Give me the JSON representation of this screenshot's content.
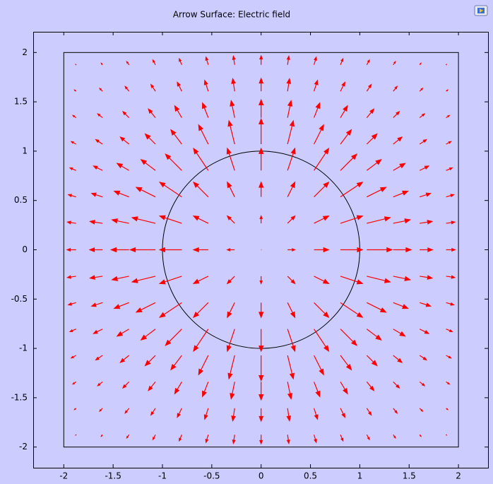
{
  "chart_data": {
    "type": "quiver",
    "title": "Arrow Surface: Electric field",
    "xlim": [
      -2.31,
      2.3
    ],
    "ylim": [
      -2.21,
      2.21
    ],
    "xticks": [
      -2,
      -1.5,
      -1,
      -0.5,
      0,
      0.5,
      1,
      1.5,
      2
    ],
    "yticks": [
      -2,
      -1.5,
      -1,
      -0.5,
      0,
      0.5,
      1,
      1.5,
      2
    ],
    "color": "#ff0000",
    "geometry": {
      "circle_radius": 1,
      "square_half_width": 2
    },
    "x": [
      -1.875,
      -1.607,
      -1.339,
      -1.071,
      -0.804,
      -0.536,
      -0.268,
      0,
      0.268,
      0.536,
      0.804,
      1.071,
      1.339,
      1.607,
      1.875
    ],
    "y": [
      -1.875,
      -1.607,
      -1.339,
      -1.071,
      -0.804,
      -0.536,
      -0.268,
      0,
      0.268,
      0.536,
      0.804,
      1.071,
      1.339,
      1.607,
      1.875
    ],
    "u": [
      [
        -0.01,
        -0.04,
        -0.07,
        -0.08,
        -0.08,
        -0.07,
        -0.04,
        0,
        0.04,
        0.07,
        0.08,
        0.08,
        0.07,
        0.04,
        0.01
      ],
      [
        -0.05,
        -0.09,
        -0.12,
        -0.14,
        -0.14,
        -0.11,
        -0.06,
        0,
        0.06,
        0.11,
        0.14,
        0.14,
        0.12,
        0.09,
        0.05
      ],
      [
        -0.1,
        -0.15,
        -0.19,
        -0.22,
        -0.22,
        -0.18,
        -0.11,
        0,
        0.11,
        0.18,
        0.22,
        0.22,
        0.19,
        0.15,
        0.1
      ],
      [
        -0.15,
        -0.21,
        -0.27,
        -0.32,
        -0.34,
        -0.3,
        -0.18,
        0,
        0.18,
        0.3,
        0.34,
        0.32,
        0.27,
        0.21,
        0.15
      ],
      [
        -0.19,
        -0.28,
        -0.37,
        -0.45,
        -0.51,
        -0.46,
        -0.23,
        0,
        0.23,
        0.46,
        0.51,
        0.45,
        0.37,
        0.28,
        0.19
      ],
      [
        -0.24,
        -0.34,
        -0.46,
        -0.6,
        -0.69,
        -0.46,
        -0.23,
        0,
        0.23,
        0.46,
        0.69,
        0.6,
        0.46,
        0.34,
        0.24
      ],
      [
        -0.27,
        -0.39,
        -0.53,
        -0.73,
        -0.69,
        -0.46,
        -0.23,
        0,
        0.23,
        0.46,
        0.69,
        0.73,
        0.53,
        0.39,
        0.27
      ],
      [
        -0.28,
        -0.4,
        -0.56,
        -0.79,
        -0.69,
        -0.46,
        -0.23,
        0,
        0.23,
        0.46,
        0.69,
        0.79,
        0.56,
        0.4,
        0.28
      ],
      [
        -0.27,
        -0.39,
        -0.53,
        -0.73,
        -0.69,
        -0.46,
        -0.23,
        0,
        0.23,
        0.46,
        0.69,
        0.73,
        0.53,
        0.39,
        0.27
      ],
      [
        -0.24,
        -0.34,
        -0.46,
        -0.6,
        -0.69,
        -0.46,
        -0.23,
        0,
        0.23,
        0.46,
        0.69,
        0.6,
        0.46,
        0.34,
        0.24
      ],
      [
        -0.19,
        -0.28,
        -0.37,
        -0.45,
        -0.51,
        -0.46,
        -0.23,
        0,
        0.23,
        0.46,
        0.51,
        0.45,
        0.37,
        0.28,
        0.19
      ],
      [
        -0.15,
        -0.21,
        -0.27,
        -0.32,
        -0.34,
        -0.3,
        -0.18,
        0,
        0.18,
        0.3,
        0.34,
        0.32,
        0.27,
        0.21,
        0.15
      ],
      [
        -0.1,
        -0.15,
        -0.19,
        -0.22,
        -0.22,
        -0.18,
        -0.11,
        0,
        0.11,
        0.18,
        0.22,
        0.22,
        0.19,
        0.15,
        0.1
      ],
      [
        -0.05,
        -0.09,
        -0.12,
        -0.14,
        -0.14,
        -0.11,
        -0.06,
        0,
        0.06,
        0.11,
        0.14,
        0.14,
        0.12,
        0.09,
        0.05
      ],
      [
        -0.01,
        -0.04,
        -0.07,
        -0.08,
        -0.08,
        -0.07,
        -0.04,
        0,
        0.04,
        0.07,
        0.08,
        0.08,
        0.07,
        0.04,
        0.01
      ]
    ],
    "v": [
      [
        -0.01,
        -0.05,
        -0.1,
        -0.15,
        -0.19,
        -0.24,
        -0.27,
        -0.28,
        -0.27,
        -0.24,
        -0.19,
        -0.15,
        -0.1,
        -0.05,
        -0.01
      ],
      [
        -0.04,
        -0.09,
        -0.15,
        -0.21,
        -0.28,
        -0.34,
        -0.39,
        -0.4,
        -0.39,
        -0.34,
        -0.28,
        -0.21,
        -0.15,
        -0.09,
        -0.04
      ],
      [
        -0.07,
        -0.12,
        -0.19,
        -0.27,
        -0.37,
        -0.46,
        -0.53,
        -0.56,
        -0.53,
        -0.46,
        -0.37,
        -0.27,
        -0.19,
        -0.12,
        -0.07
      ],
      [
        -0.08,
        -0.14,
        -0.22,
        -0.32,
        -0.45,
        -0.6,
        -0.73,
        -0.79,
        -0.73,
        -0.6,
        -0.45,
        -0.32,
        -0.22,
        -0.14,
        -0.08
      ],
      [
        -0.08,
        -0.14,
        -0.22,
        -0.34,
        -0.51,
        -0.69,
        -0.69,
        -0.69,
        -0.69,
        -0.69,
        -0.51,
        -0.34,
        -0.22,
        -0.14,
        -0.08
      ],
      [
        -0.07,
        -0.11,
        -0.18,
        -0.3,
        -0.46,
        -0.46,
        -0.46,
        -0.46,
        -0.46,
        -0.46,
        -0.46,
        -0.3,
        -0.18,
        -0.11,
        -0.07
      ],
      [
        -0.04,
        -0.06,
        -0.11,
        -0.18,
        -0.23,
        -0.23,
        -0.23,
        -0.23,
        -0.23,
        -0.23,
        -0.23,
        -0.18,
        -0.11,
        -0.06,
        -0.04
      ],
      [
        0,
        0,
        0,
        0,
        0,
        0,
        0,
        0,
        0,
        0,
        0,
        0,
        0,
        0,
        0
      ],
      [
        0.04,
        0.06,
        0.11,
        0.18,
        0.23,
        0.23,
        0.23,
        0.23,
        0.23,
        0.23,
        0.23,
        0.18,
        0.11,
        0.06,
        0.04
      ],
      [
        0.07,
        0.11,
        0.18,
        0.3,
        0.46,
        0.46,
        0.46,
        0.46,
        0.46,
        0.46,
        0.46,
        0.3,
        0.18,
        0.11,
        0.07
      ],
      [
        0.08,
        0.14,
        0.22,
        0.34,
        0.51,
        0.69,
        0.69,
        0.69,
        0.69,
        0.69,
        0.51,
        0.34,
        0.22,
        0.14,
        0.08
      ],
      [
        0.08,
        0.14,
        0.22,
        0.32,
        0.45,
        0.6,
        0.73,
        0.79,
        0.73,
        0.6,
        0.45,
        0.32,
        0.22,
        0.14,
        0.08
      ],
      [
        0.07,
        0.12,
        0.19,
        0.27,
        0.37,
        0.46,
        0.53,
        0.56,
        0.53,
        0.46,
        0.37,
        0.27,
        0.19,
        0.12,
        0.07
      ],
      [
        0.04,
        0.09,
        0.15,
        0.21,
        0.28,
        0.34,
        0.39,
        0.4,
        0.39,
        0.34,
        0.28,
        0.21,
        0.15,
        0.09,
        0.04
      ],
      [
        0.01,
        0.05,
        0.1,
        0.15,
        0.19,
        0.24,
        0.27,
        0.28,
        0.27,
        0.24,
        0.19,
        0.15,
        0.1,
        0.05,
        0.01
      ]
    ]
  }
}
